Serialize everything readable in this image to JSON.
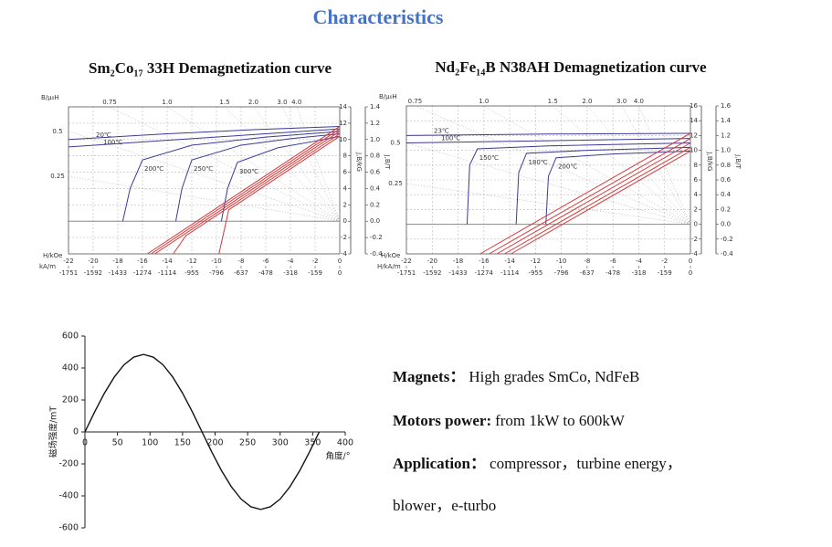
{
  "title": "Characteristics",
  "chart_data": [
    {
      "type": "demag",
      "title": "Sm₂Co₁₇ 33H Demagnetization curve",
      "xlabel": "H/kOe",
      "x2label": "kA/m",
      "ylabel": "J,B/kG",
      "y2label": "J,B/T",
      "permeance_label": "B/μ₀H",
      "xlim": [
        -22,
        0
      ],
      "xticks": [
        -22,
        -20,
        -18,
        -16,
        -14,
        -12,
        -10,
        -8,
        -6,
        -4,
        -2,
        0
      ],
      "x2lim": [
        -1751,
        0
      ],
      "x2ticks": [
        -1751,
        -1592,
        -1433,
        -1274,
        -1114,
        -955,
        -796,
        -637,
        -478,
        -318,
        -159,
        0
      ],
      "ylim": [
        -4,
        14
      ],
      "yticks": [
        -4,
        -2,
        0,
        2,
        4,
        6,
        8,
        10,
        12,
        14
      ],
      "y2lim": [
        -0.4,
        1.4
      ],
      "y2ticks": [
        -0.4,
        -0.2,
        {
          "value": 0,
          "label": "0.0"
        },
        0.2,
        0.4,
        0.6,
        0.8,
        {
          "value": 1,
          "label": "1.0"
        },
        1.2,
        1.4
      ],
      "permeance": [
        0.25,
        0.5,
        0.75,
        {
          "value": 1,
          "label": "1.0"
        },
        1.5,
        {
          "value": 2,
          "label": "2.0"
        },
        {
          "value": 3,
          "label": "3.0"
        },
        {
          "value": 4,
          "label": "4.0"
        }
      ],
      "grid": true,
      "series": [
        {
          "name": "20℃",
          "color": "#3b3b96",
          "x": [
            -22,
            -14,
            -7,
            0
          ],
          "values": [
            10.0,
            10.7,
            11.2,
            11.6
          ]
        },
        {
          "name": "100℃",
          "color": "#3b3b96",
          "x": [
            -22,
            -14,
            -7,
            0
          ],
          "values": [
            9.1,
            9.9,
            10.6,
            11.3
          ]
        },
        {
          "name": "200℃",
          "color": "#3b3b96",
          "x": [
            -17.6,
            -17.0,
            -16,
            -12,
            -6,
            0
          ],
          "values": [
            0,
            4,
            7.5,
            9.3,
            10.3,
            11.0
          ]
        },
        {
          "name": "250℃",
          "color": "#3b3b96",
          "x": [
            -13.3,
            -12.8,
            -12,
            -8,
            -4,
            0
          ],
          "values": [
            0,
            4,
            7.5,
            9.3,
            10.1,
            10.7
          ]
        },
        {
          "name": "300℃",
          "color": "#3b3b96",
          "x": [
            -9.6,
            -9.1,
            -8.3,
            -5,
            -2,
            0
          ],
          "values": [
            0,
            4,
            7.2,
            9.0,
            9.8,
            10.4
          ]
        },
        {
          "color": "#d8383a",
          "x": [
            -15.6,
            0
          ],
          "values": [
            -4,
            11.6
          ]
        },
        {
          "color": "#d8383a",
          "x": [
            -15.3,
            0
          ],
          "values": [
            -4,
            11.3
          ]
        },
        {
          "color": "#d8383a",
          "x": [
            -15.0,
            0
          ],
          "values": [
            -4,
            11.0
          ]
        },
        {
          "color": "#d8383a",
          "x": [
            -13.5,
            -12.5,
            0
          ],
          "values": [
            -4,
            -1.8,
            10.7
          ]
        },
        {
          "color": "#d8383a",
          "x": [
            -9.8,
            -9.0,
            0
          ],
          "values": [
            -4,
            1.4,
            10.4
          ]
        }
      ]
    },
    {
      "type": "demag",
      "title": "Nd₂Fe₁₄B N38AH Demagnetization curve",
      "xlabel": "H/kOe",
      "x2label": "H/kA/m",
      "ylabel": "J,B/kG",
      "y2label": "J,B/T",
      "permeance_label": "B/μ₀H",
      "xlim": [
        -22,
        0
      ],
      "xticks": [
        -22,
        -20,
        -18,
        -16,
        -14,
        -12,
        -10,
        -8,
        -6,
        -4,
        -2,
        0
      ],
      "x2lim": [
        -1751,
        0
      ],
      "x2ticks": [
        -1751,
        -1592,
        -1433,
        -1274,
        -1114,
        -955,
        -796,
        -637,
        -478,
        -318,
        -159,
        0
      ],
      "ylim": [
        -4,
        16
      ],
      "yticks": [
        -4,
        -2,
        0,
        2,
        4,
        6,
        8,
        10,
        12,
        14,
        16
      ],
      "y2lim": [
        -0.4,
        1.6
      ],
      "y2ticks": [
        -0.4,
        -0.2,
        {
          "value": 0,
          "label": "0.0"
        },
        0.2,
        0.4,
        0.6,
        0.8,
        {
          "value": 1,
          "label": "1.0"
        },
        1.2,
        1.4,
        1.6
      ],
      "permeance": [
        0.25,
        0.5,
        0.75,
        {
          "value": 1,
          "label": "1.0"
        },
        1.5,
        {
          "value": 2,
          "label": "2.0"
        },
        {
          "value": 3,
          "label": "3.0"
        },
        {
          "value": 4,
          "label": "4.0"
        }
      ],
      "grid": true,
      "series": [
        {
          "name": "23℃",
          "color": "#3b3b96",
          "x": [
            -22,
            -11,
            0
          ],
          "values": [
            12.0,
            12.2,
            12.3
          ]
        },
        {
          "name": "100℃",
          "color": "#3b3b96",
          "x": [
            -22,
            -11,
            0
          ],
          "values": [
            11.0,
            11.3,
            11.6
          ]
        },
        {
          "name": "150℃",
          "color": "#3b3b96",
          "x": [
            -17.3,
            -17.1,
            -16.5,
            -11,
            0
          ],
          "values": [
            0,
            8,
            10.2,
            10.6,
            11.0
          ]
        },
        {
          "name": "180℃",
          "color": "#3b3b96",
          "x": [
            -13.5,
            -13.3,
            -12.7,
            -8,
            0
          ],
          "values": [
            0,
            7,
            9.6,
            10.0,
            10.4
          ]
        },
        {
          "name": "200℃",
          "color": "#3b3b96",
          "x": [
            -11.2,
            -11.0,
            -10.4,
            -6,
            0
          ],
          "values": [
            0,
            6.5,
            9.0,
            9.5,
            9.9
          ]
        },
        {
          "color": "#d8383a",
          "x": [
            -16.3,
            0
          ],
          "values": [
            -4,
            12.3
          ]
        },
        {
          "color": "#d8383a",
          "x": [
            -15.6,
            0
          ],
          "values": [
            -4,
            11.6
          ]
        },
        {
          "color": "#d8383a",
          "x": [
            -15.0,
            0
          ],
          "values": [
            -4,
            11.0
          ]
        },
        {
          "color": "#d8383a",
          "x": [
            -14.4,
            0
          ],
          "values": [
            -4,
            10.4
          ]
        },
        {
          "color": "#d8383a",
          "x": [
            -13.9,
            0
          ],
          "values": [
            -4,
            9.9
          ]
        }
      ]
    },
    {
      "type": "line",
      "xlabel": "角度/°",
      "ylabel": "磁场强度/mT",
      "xlim": [
        0,
        400
      ],
      "xticks": [
        0,
        50,
        100,
        150,
        200,
        250,
        300,
        350,
        400
      ],
      "ylim": [
        -600,
        600
      ],
      "yticks": [
        -600,
        -400,
        -200,
        0,
        200,
        400,
        600
      ],
      "series": [
        {
          "color": "#111111",
          "x": [
            0,
            15,
            30,
            45,
            60,
            75,
            90,
            105,
            120,
            135,
            150,
            165,
            180,
            195,
            210,
            225,
            240,
            255,
            270,
            285,
            300,
            315,
            330,
            345,
            360
          ],
          "values": [
            0,
            126,
            243,
            343,
            420,
            468,
            485,
            468,
            420,
            343,
            243,
            126,
            0,
            -126,
            -243,
            -343,
            -420,
            -468,
            -485,
            -468,
            -420,
            -343,
            -243,
            -126,
            0
          ]
        }
      ]
    }
  ],
  "specs": [
    {
      "label": "Magnets：",
      "text": "High grades SmCo, NdFeB"
    },
    {
      "label": "Motors power:",
      "text": "from 1kW to 600kW"
    },
    {
      "label": "Application：",
      "text": "compressor，turbine energy，"
    }
  ],
  "specs_continued": "blower，e-turbo"
}
